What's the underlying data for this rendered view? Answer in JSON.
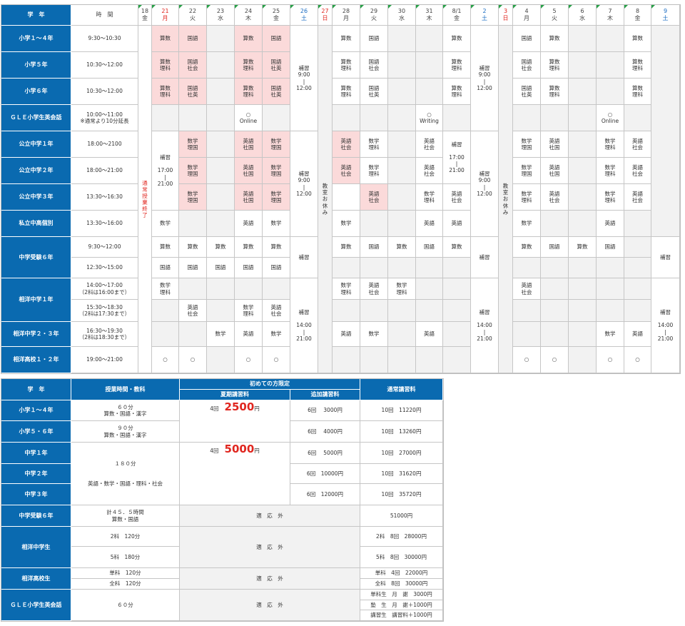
{
  "schedule": {
    "grade_header": "学　年",
    "time_header": "時　間",
    "days": [
      {
        "date": "18",
        "dow": "金",
        "type": "wk"
      },
      {
        "date": "21",
        "dow": "月",
        "type": "sun"
      },
      {
        "date": "22",
        "dow": "火",
        "type": "wk"
      },
      {
        "date": "23",
        "dow": "水",
        "type": "wk"
      },
      {
        "date": "24",
        "dow": "木",
        "type": "wk"
      },
      {
        "date": "25",
        "dow": "金",
        "type": "wk"
      },
      {
        "date": "26",
        "dow": "土",
        "type": "sat"
      },
      {
        "date": "27",
        "dow": "日",
        "type": "sun"
      },
      {
        "date": "28",
        "dow": "月",
        "type": "wk"
      },
      {
        "date": "29",
        "dow": "火",
        "type": "wk"
      },
      {
        "date": "30",
        "dow": "水",
        "type": "wk"
      },
      {
        "date": "31",
        "dow": "木",
        "type": "wk"
      },
      {
        "date": "8/1",
        "dow": "金",
        "type": "wk"
      },
      {
        "date": "2",
        "dow": "土",
        "type": "sat"
      },
      {
        "date": "3",
        "dow": "日",
        "type": "sun"
      },
      {
        "date": "4",
        "dow": "月",
        "type": "wk"
      },
      {
        "date": "5",
        "dow": "火",
        "type": "wk"
      },
      {
        "date": "6",
        "dow": "水",
        "type": "wk"
      },
      {
        "date": "7",
        "dow": "木",
        "type": "wk"
      },
      {
        "date": "8",
        "dow": "金",
        "type": "wk"
      },
      {
        "date": "9",
        "dow": "土",
        "type": "sat"
      }
    ],
    "grades": [
      "小学１～４年",
      "小学５年",
      "小学６年",
      "ＧＬＥ小学生英会話",
      "公立中学１年",
      "公立中学２年",
      "公立中学３年",
      "私立中高個別",
      "中学受験６年",
      "相洋中学１年",
      "相洋中学２・３年",
      "相洋高校１・２年"
    ],
    "times": [
      "9:30～10:30",
      "10:30～12:00",
      "10:30～12:00",
      "10:00～11:00\n※通常より10分延長",
      "18:00～2100",
      "18:00～21:00",
      "13:30～16:30",
      "13:30～16:00",
      "9:30～12:00",
      "12:30～15:00",
      "14:00～17:00\n（2科は16:00まで）",
      "15:30～18:30\n（2科は17:30まで）",
      "16:30～19:30\n（2科は18:30まで）",
      "19:00～21:00"
    ],
    "cells": [
      [
        "",
        "算数",
        "国語",
        "",
        "算数",
        "国語",
        "",
        "",
        "算数",
        "国語",
        "",
        "",
        "算数",
        "",
        "",
        "国語",
        "算数",
        "",
        "",
        "算数",
        ""
      ],
      [
        "",
        "算数\n理科",
        "国語\n社会",
        "",
        "算数\n理科",
        "国語\n社英",
        "",
        "",
        "算数\n理科",
        "国語\n社会",
        "",
        "",
        "算数\n理科",
        "",
        "",
        "国語\n社会",
        "算数\n理科",
        "",
        "",
        "算数\n理科",
        ""
      ],
      [
        "",
        "算数\n理科",
        "国語\n社英",
        "",
        "算数\n理科",
        "国語\n社英",
        "",
        "",
        "算数\n理科",
        "国語\n社英",
        "",
        "",
        "算数\n理科",
        "",
        "",
        "国語\n社英",
        "算数\n理科",
        "",
        "",
        "算数\n理科",
        ""
      ],
      [
        "",
        "",
        "",
        "",
        "○\nOnline",
        "",
        "",
        "",
        "",
        "",
        "",
        "○\nWriting",
        "",
        "",
        "",
        "",
        "",
        "",
        "○\nOnline",
        "",
        ""
      ],
      [
        "",
        "",
        "数学\n理国",
        "",
        "英語\n社国",
        "数学\n理国",
        "",
        "",
        "英語\n社会",
        "数学\n理科",
        "",
        "英語\n社会",
        "",
        "",
        "",
        "数学\n理国",
        "英語\n社国",
        "",
        "数学\n理科",
        "英語\n社会",
        ""
      ],
      [
        "",
        "",
        "数学\n理国",
        "",
        "英語\n社国",
        "数学\n理国",
        "",
        "",
        "英語\n社会",
        "数学\n理科",
        "",
        "英語\n社会",
        "",
        "",
        "",
        "数学\n理国",
        "英語\n社国",
        "",
        "数学\n理科",
        "英語\n社会",
        ""
      ],
      [
        "",
        "",
        "数学\n理国",
        "",
        "英語\n社国",
        "数学\n理国",
        "",
        "",
        "",
        "英語\n社会",
        "",
        "数学\n理科",
        "英語\n社会",
        "",
        "",
        "数学\n理科",
        "英語\n社会",
        "",
        "数学\n理科",
        "英語\n社会",
        ""
      ],
      [
        "",
        "数学",
        "",
        "",
        "英語",
        "数学",
        "",
        "",
        "数学",
        "",
        "",
        "英語",
        "英語",
        "",
        "",
        "数学",
        "",
        "",
        "英語",
        "",
        ""
      ],
      [
        "",
        "算数",
        "算数",
        "算数",
        "算数",
        "算数",
        "",
        "",
        "算数",
        "国語",
        "算数",
        "国語",
        "算数",
        "",
        "",
        "算数",
        "国語",
        "算数",
        "国語",
        "",
        ""
      ],
      [
        "",
        "国語",
        "国語",
        "国語",
        "国語",
        "国語",
        "",
        "",
        "",
        "",
        "",
        "",
        "",
        "",
        "",
        "",
        "",
        "",
        "",
        "",
        ""
      ],
      [
        "",
        "数学\n理科",
        "",
        "",
        "",
        "",
        "",
        "",
        "数学\n理科",
        "英語\n社会",
        "数学\n理科",
        "",
        "",
        "",
        "",
        "英語\n社会",
        "",
        "",
        "",
        "",
        ""
      ],
      [
        "",
        "",
        "英語\n社会",
        "",
        "数学\n理科",
        "英語\n社会",
        "",
        "",
        "",
        "",
        "",
        "",
        "",
        "",
        "",
        "",
        "",
        "",
        "",
        "",
        ""
      ],
      [
        "",
        "",
        "",
        "数学",
        "英語",
        "数学",
        "",
        "",
        "英語",
        "数学",
        "",
        "英語",
        "",
        "",
        "",
        "",
        "",
        "",
        "数学",
        "英語",
        ""
      ],
      [
        "",
        "○",
        "○",
        "",
        "○",
        "○",
        "",
        "",
        "",
        "",
        "",
        "",
        "",
        "",
        "",
        "○",
        "○",
        "",
        "○",
        "○",
        ""
      ]
    ],
    "spans": {
      "sp18": "通\n常\n授\n業\n終\n了",
      "sp21": "補習\n\n17:00\n|\n21:00",
      "sp26a": "補習\n9:00\n|\n12:00",
      "sp26b": "補習\n9:00\n|\n12:00",
      "sp26c": "補習",
      "sp26d": "補習\n\n14:00\n|\n21:00",
      "sp27": "教\n室\nお\n休\nみ",
      "sp81": "補習\n\n17:00\n|\n21:00",
      "sp2a": "補習\n9:00\n|\n12:00",
      "sp2b": "補習\n9:00\n|\n12:00",
      "sp2c": "補習",
      "sp2d": "補習\n\n14:00\n|\n21:00",
      "sp3": "教\n室\nお\n休\nみ",
      "sp9a": "補習",
      "sp9b": "補習\n\n14:00\n|\n21:00"
    }
  },
  "fees": {
    "h_grade": "学　年",
    "h_lesson": "授業時間・教科",
    "h_first": "初めての方限定",
    "h_summer": "夏期講習料",
    "h_extra": "追加講習料",
    "h_normal": "通常講習料",
    "rows": [
      {
        "grade": "小学１～４年",
        "lesson": "６０分\n算数・国語・漢字",
        "extra": "6回　 3000円",
        "normal": "10回　11220円"
      },
      {
        "grade": "小学５・６年",
        "lesson": "９０分\n算数・国語・漢字",
        "extra": "6回　 4000円",
        "normal": "10回　13260円"
      },
      {
        "grade": "中学１年",
        "lesson": "",
        "extra": "6回　 5000円",
        "normal": "10回　27000円"
      },
      {
        "grade": "中学２年",
        "lesson": "",
        "extra": "6回　10000円",
        "normal": "10回　31620円"
      },
      {
        "grade": "中学３年",
        "lesson": "",
        "extra": "6回　12000円",
        "normal": "10回　35720円"
      }
    ],
    "jhs_lesson": "１８０分\n\n\n英語・数学・国語・理科・社会",
    "e_count": "4回",
    "e_price": "2500",
    "e_unit": "円",
    "j_count": "4回",
    "j_price": "5000",
    "j_unit": "円",
    "exam_grade": "中学受験６年",
    "exam_lesson": "計４５．５時間\n算数・国語",
    "exam_na": "適　応　外",
    "exam_normal": "51000円",
    "soyo_jhs": "相洋中学生",
    "soyo_jhs_l1": "2科　120分",
    "soyo_jhs_l2": "5科　180分",
    "soyo_jhs_na": "適　応　外",
    "soyo_jhs_n1": "2科　8回　28000円",
    "soyo_jhs_n2": "5科　8回　30000円",
    "soyo_hs": "相洋高校生",
    "soyo_hs_l1": "単科　120分",
    "soyo_hs_l2": "全科　120分",
    "soyo_hs_na": "適　応　外",
    "soyo_hs_n1": "単科　4回　22000円",
    "soyo_hs_n2": "全科　8回　30000円",
    "gle": "ＧＬＥ小学生英会話",
    "gle_lesson": "６０分",
    "gle_na": "適　応　外",
    "gle_n1": "単科生　月　謝　3000円",
    "gle_n2": "塾　生　月　謝＋1000円",
    "gle_n3": "講習生　講習料＋1000円"
  }
}
